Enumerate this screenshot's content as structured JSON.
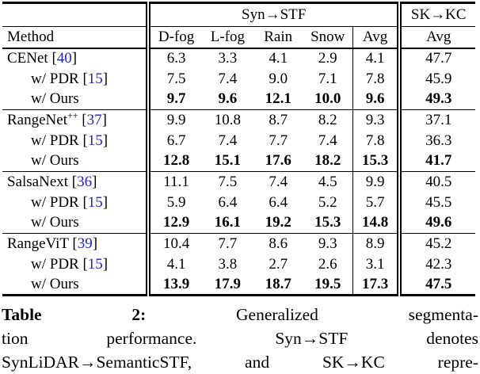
{
  "table": {
    "span_headers": [
      "Syn→STF",
      "SK→KC"
    ],
    "columns": [
      "Method",
      "D-fog",
      "L-fog",
      "Rain",
      "Snow",
      "Avg",
      "Avg"
    ],
    "groups": [
      {
        "rows": [
          {
            "method": "CENet",
            "sup": "",
            "cite": "40",
            "indent": false,
            "bold": false,
            "values": [
              "6.3",
              "3.3",
              "4.1",
              "2.9",
              "4.1",
              "47.7"
            ]
          },
          {
            "method": "w/ PDR",
            "sup": "",
            "cite": "15",
            "indent": true,
            "bold": false,
            "values": [
              "7.5",
              "7.4",
              "9.0",
              "7.1",
              "7.8",
              "45.9"
            ]
          },
          {
            "method": "w/ Ours",
            "sup": "",
            "cite": "",
            "indent": true,
            "bold": true,
            "values": [
              "9.7",
              "9.6",
              "12.1",
              "10.0",
              "9.6",
              "49.3"
            ]
          }
        ]
      },
      {
        "rows": [
          {
            "method": "RangeNet",
            "sup": "++",
            "cite": "37",
            "indent": false,
            "bold": false,
            "values": [
              "9.9",
              "10.8",
              "8.7",
              "8.2",
              "9.3",
              "37.1"
            ]
          },
          {
            "method": "w/ PDR",
            "sup": "",
            "cite": "15",
            "indent": true,
            "bold": false,
            "values": [
              "6.7",
              "7.4",
              "7.7",
              "7.4",
              "7.8",
              "36.3"
            ]
          },
          {
            "method": "w/ Ours",
            "sup": "",
            "cite": "",
            "indent": true,
            "bold": true,
            "values": [
              "12.8",
              "15.1",
              "17.6",
              "18.2",
              "15.3",
              "41.7"
            ]
          }
        ]
      },
      {
        "rows": [
          {
            "method": "SalsaNext",
            "sup": "",
            "cite": "36",
            "indent": false,
            "bold": false,
            "values": [
              "11.1",
              "7.5",
              "7.4",
              "4.5",
              "9.9",
              "40.5"
            ]
          },
          {
            "method": "w/ PDR",
            "sup": "",
            "cite": "15",
            "indent": true,
            "bold": false,
            "values": [
              "5.9",
              "6.4",
              "6.4",
              "5.2",
              "5.7",
              "45.5"
            ]
          },
          {
            "method": "w/ Ours",
            "sup": "",
            "cite": "",
            "indent": true,
            "bold": true,
            "values": [
              "12.9",
              "16.1",
              "19.2",
              "15.3",
              "14.8",
              "49.6"
            ]
          }
        ]
      },
      {
        "rows": [
          {
            "method": "RangeViT",
            "sup": "",
            "cite": "39",
            "indent": false,
            "bold": false,
            "values": [
              "10.4",
              "7.7",
              "8.6",
              "9.3",
              "8.9",
              "45.2"
            ]
          },
          {
            "method": "w/ PDR",
            "sup": "",
            "cite": "15",
            "indent": true,
            "bold": false,
            "values": [
              "4.1",
              "3.8",
              "2.7",
              "2.6",
              "3.1",
              "42.3"
            ]
          },
          {
            "method": "w/ Ours",
            "sup": "",
            "cite": "",
            "indent": true,
            "bold": true,
            "values": [
              "13.9",
              "17.9",
              "18.7",
              "19.5",
              "17.3",
              "47.5"
            ]
          }
        ]
      }
    ]
  },
  "caption": {
    "lines": [
      {
        "words": [
          "Table",
          "2:",
          "Generalized",
          "segmenta-"
        ]
      },
      {
        "words": [
          "tion",
          "performance.",
          "Syn→STF",
          "denotes"
        ]
      },
      {
        "words": [
          "SynLiDAR→SemanticSTF,",
          "and",
          "SK→KC",
          "repre-"
        ]
      }
    ]
  },
  "colors": {
    "text": "#000000",
    "citation_link": "#2222cc",
    "background": "#ffffff",
    "rule": "#000000"
  }
}
